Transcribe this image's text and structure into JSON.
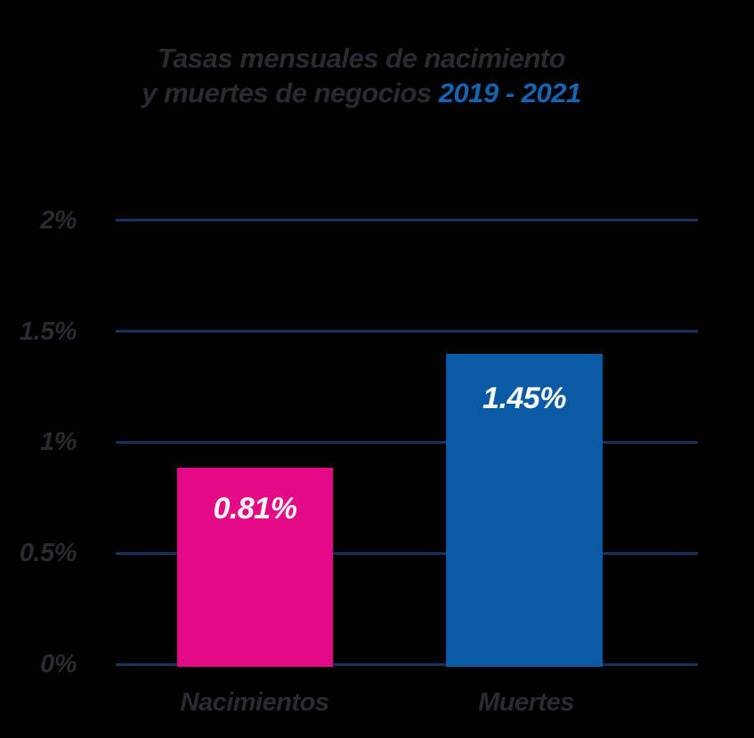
{
  "title": {
    "line1": "Tasas mensuales de nacimiento",
    "line2_dark": "y muertes de negocios",
    "line2_accent": "2019 - 2021"
  },
  "colors": {
    "background": "#000000",
    "title_text": "#2a2a33",
    "title_accent_blue": "#1565b2",
    "grid_line": "#14335f",
    "axis_label": "#2a2a33",
    "bar_births_pink": "#e40985",
    "bar_deaths_blue": "#0b5aa6",
    "bar_value_text": "#ffffff"
  },
  "chart_data": {
    "type": "bar",
    "title": "Tasas mensuales de nacimiento y muertes de negocios 2019 - 2021",
    "categories": [
      "Nacimientos",
      "Muertes"
    ],
    "values": [
      0.81,
      1.45
    ],
    "value_labels": [
      "0.81%",
      "1.45%"
    ],
    "series": [
      {
        "name": "Nacimientos",
        "values": [
          0.81
        ],
        "color": "#e40985"
      },
      {
        "name": "Muertes",
        "values": [
          1.45
        ],
        "color": "#0b5aa6"
      }
    ],
    "unit": "%",
    "xlabel": "",
    "ylabel": "",
    "ylim": [
      0,
      2
    ],
    "yticks": [
      "0%",
      "0.5%",
      "1%",
      "1.5%",
      "2%"
    ],
    "grid": "horizontal",
    "legend_position": "none"
  }
}
